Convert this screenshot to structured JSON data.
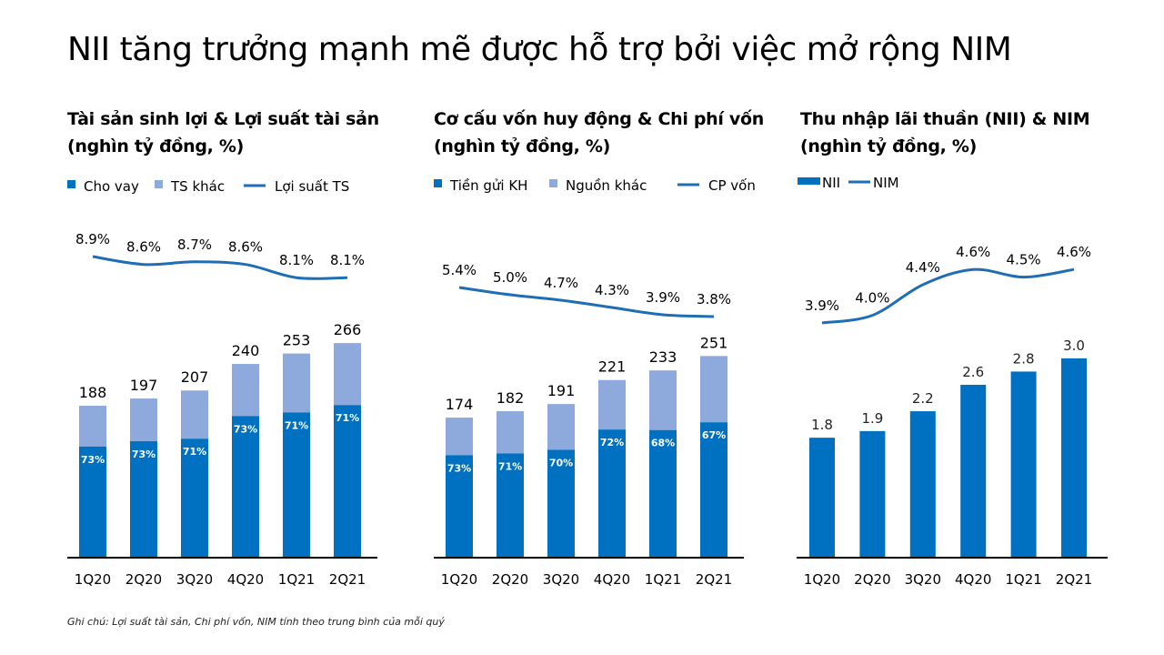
{
  "title": "NII tăng trưởng mạnh mẽ được hỗ trợ bởi việc mở rộng NIM",
  "footer": "Ghi chú: Lợi suất tài sản, Chi phí vốn, NIM tính theo trung bình của mỗi quý",
  "colors": {
    "dark": "#0070C0",
    "light": "#8EA9DB",
    "line": "#1F6EB5",
    "axis": "#000000"
  },
  "chart_data": [
    {
      "type": "bar",
      "stacked": true,
      "title_line1": "Tài sản sinh lợi & Lợi suất tài sản",
      "title_line2": "(nghìn tỷ đồng, %)",
      "categories": [
        "1Q20",
        "2Q20",
        "3Q20",
        "4Q20",
        "1Q21",
        "2Q21"
      ],
      "totals": [
        188,
        197,
        207,
        240,
        253,
        266
      ],
      "share_labels": [
        "73%",
        "73%",
        "71%",
        "73%",
        "71%",
        "71%"
      ],
      "share_values": [
        73,
        73,
        71,
        73,
        71,
        71
      ],
      "line_labels": [
        "8.9%",
        "8.6%",
        "8.7%",
        "8.6%",
        "8.1%",
        "8.1%"
      ],
      "line_values": [
        8.9,
        8.6,
        8.7,
        8.6,
        8.1,
        8.1
      ],
      "legend": [
        "Cho vay",
        "TS khác",
        "Lợi suất TS"
      ],
      "legend_placement": "top"
    },
    {
      "type": "bar",
      "stacked": true,
      "title_line1": "Cơ cấu vốn huy động & Chi phí vốn",
      "title_line2": "(nghìn tỷ đồng, %)",
      "categories": [
        "1Q20",
        "2Q20",
        "3Q20",
        "4Q20",
        "1Q21",
        "2Q21"
      ],
      "totals": [
        174,
        182,
        191,
        221,
        233,
        251
      ],
      "share_labels": [
        "73%",
        "71%",
        "70%",
        "72%",
        "68%",
        "67%"
      ],
      "share_values": [
        73,
        71,
        70,
        72,
        68,
        67
      ],
      "line_labels": [
        "5.4%",
        "5.0%",
        "4.7%",
        "4.3%",
        "3.9%",
        "3.8%"
      ],
      "line_values": [
        5.4,
        5.0,
        4.7,
        4.3,
        3.9,
        3.8
      ],
      "legend": [
        "Tiền gửi KH",
        "Nguồn khác",
        "CP vốn"
      ],
      "legend_placement": "top"
    },
    {
      "type": "bar",
      "stacked": false,
      "title_line1": "Thu nhập lãi thuần (NII) & NIM",
      "title_line2": "(nghìn tỷ đồng, %)",
      "categories": [
        "1Q20",
        "2Q20",
        "3Q20",
        "4Q20",
        "1Q21",
        "2Q21"
      ],
      "totals": [
        1.8,
        1.9,
        2.2,
        2.6,
        2.8,
        3.0
      ],
      "total_labels": [
        "1.8",
        "1.9",
        "2.2",
        "2.6",
        "2.8",
        "3.0"
      ],
      "line_labels": [
        "3.9%",
        "4.0%",
        "4.4%",
        "4.6%",
        "4.5%",
        "4.6%"
      ],
      "line_values": [
        3.9,
        4.0,
        4.4,
        4.6,
        4.5,
        4.6
      ],
      "legend": [
        "NII",
        "NIM"
      ],
      "legend_placement": "top"
    }
  ]
}
